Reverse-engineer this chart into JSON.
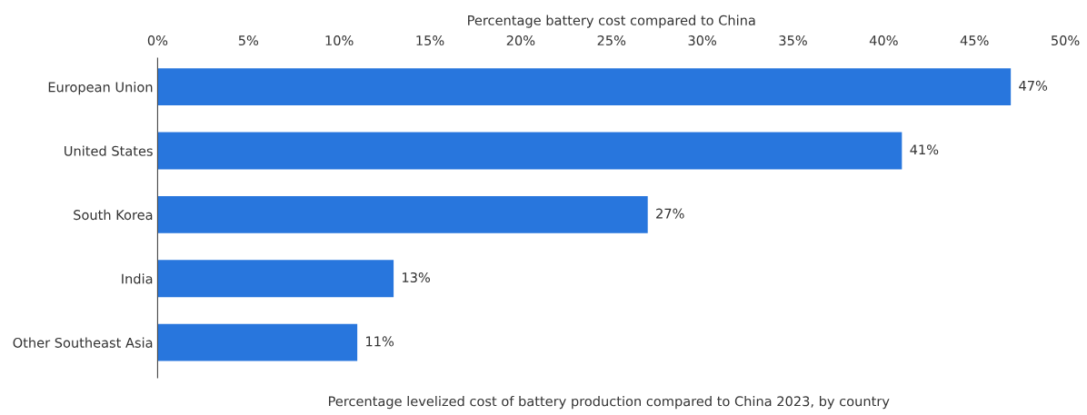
{
  "chart_data": {
    "type": "bar",
    "orientation": "horizontal",
    "xlabel": "Percentage battery cost compared to China",
    "categories": [
      "European Union",
      "United States",
      "South Korea",
      "India",
      "Other Southeast Asia"
    ],
    "values": [
      47,
      41,
      27,
      13,
      11
    ],
    "color": "#2876dd",
    "xlim": [
      0,
      50
    ],
    "xticks": [
      {
        "value": 0,
        "label": "0%"
      },
      {
        "value": 5,
        "label": "5%"
      },
      {
        "value": 10,
        "label": "10%"
      },
      {
        "value": 15,
        "label": "15%"
      },
      {
        "value": 20,
        "label": "20%"
      },
      {
        "value": 25,
        "label": "25%"
      },
      {
        "value": 30,
        "label": "30%"
      },
      {
        "value": 35,
        "label": "35%"
      },
      {
        "value": 40,
        "label": "40%"
      },
      {
        "value": 45,
        "label": "45%"
      },
      {
        "value": 50,
        "label": "50%"
      }
    ],
    "value_labels": [
      "47%",
      "41%",
      "27%",
      "13%",
      "11%"
    ],
    "grid": false,
    "legend": false,
    "annotations": [
      "Percentage levelized cost of battery production compared to China 2023, by country"
    ]
  }
}
